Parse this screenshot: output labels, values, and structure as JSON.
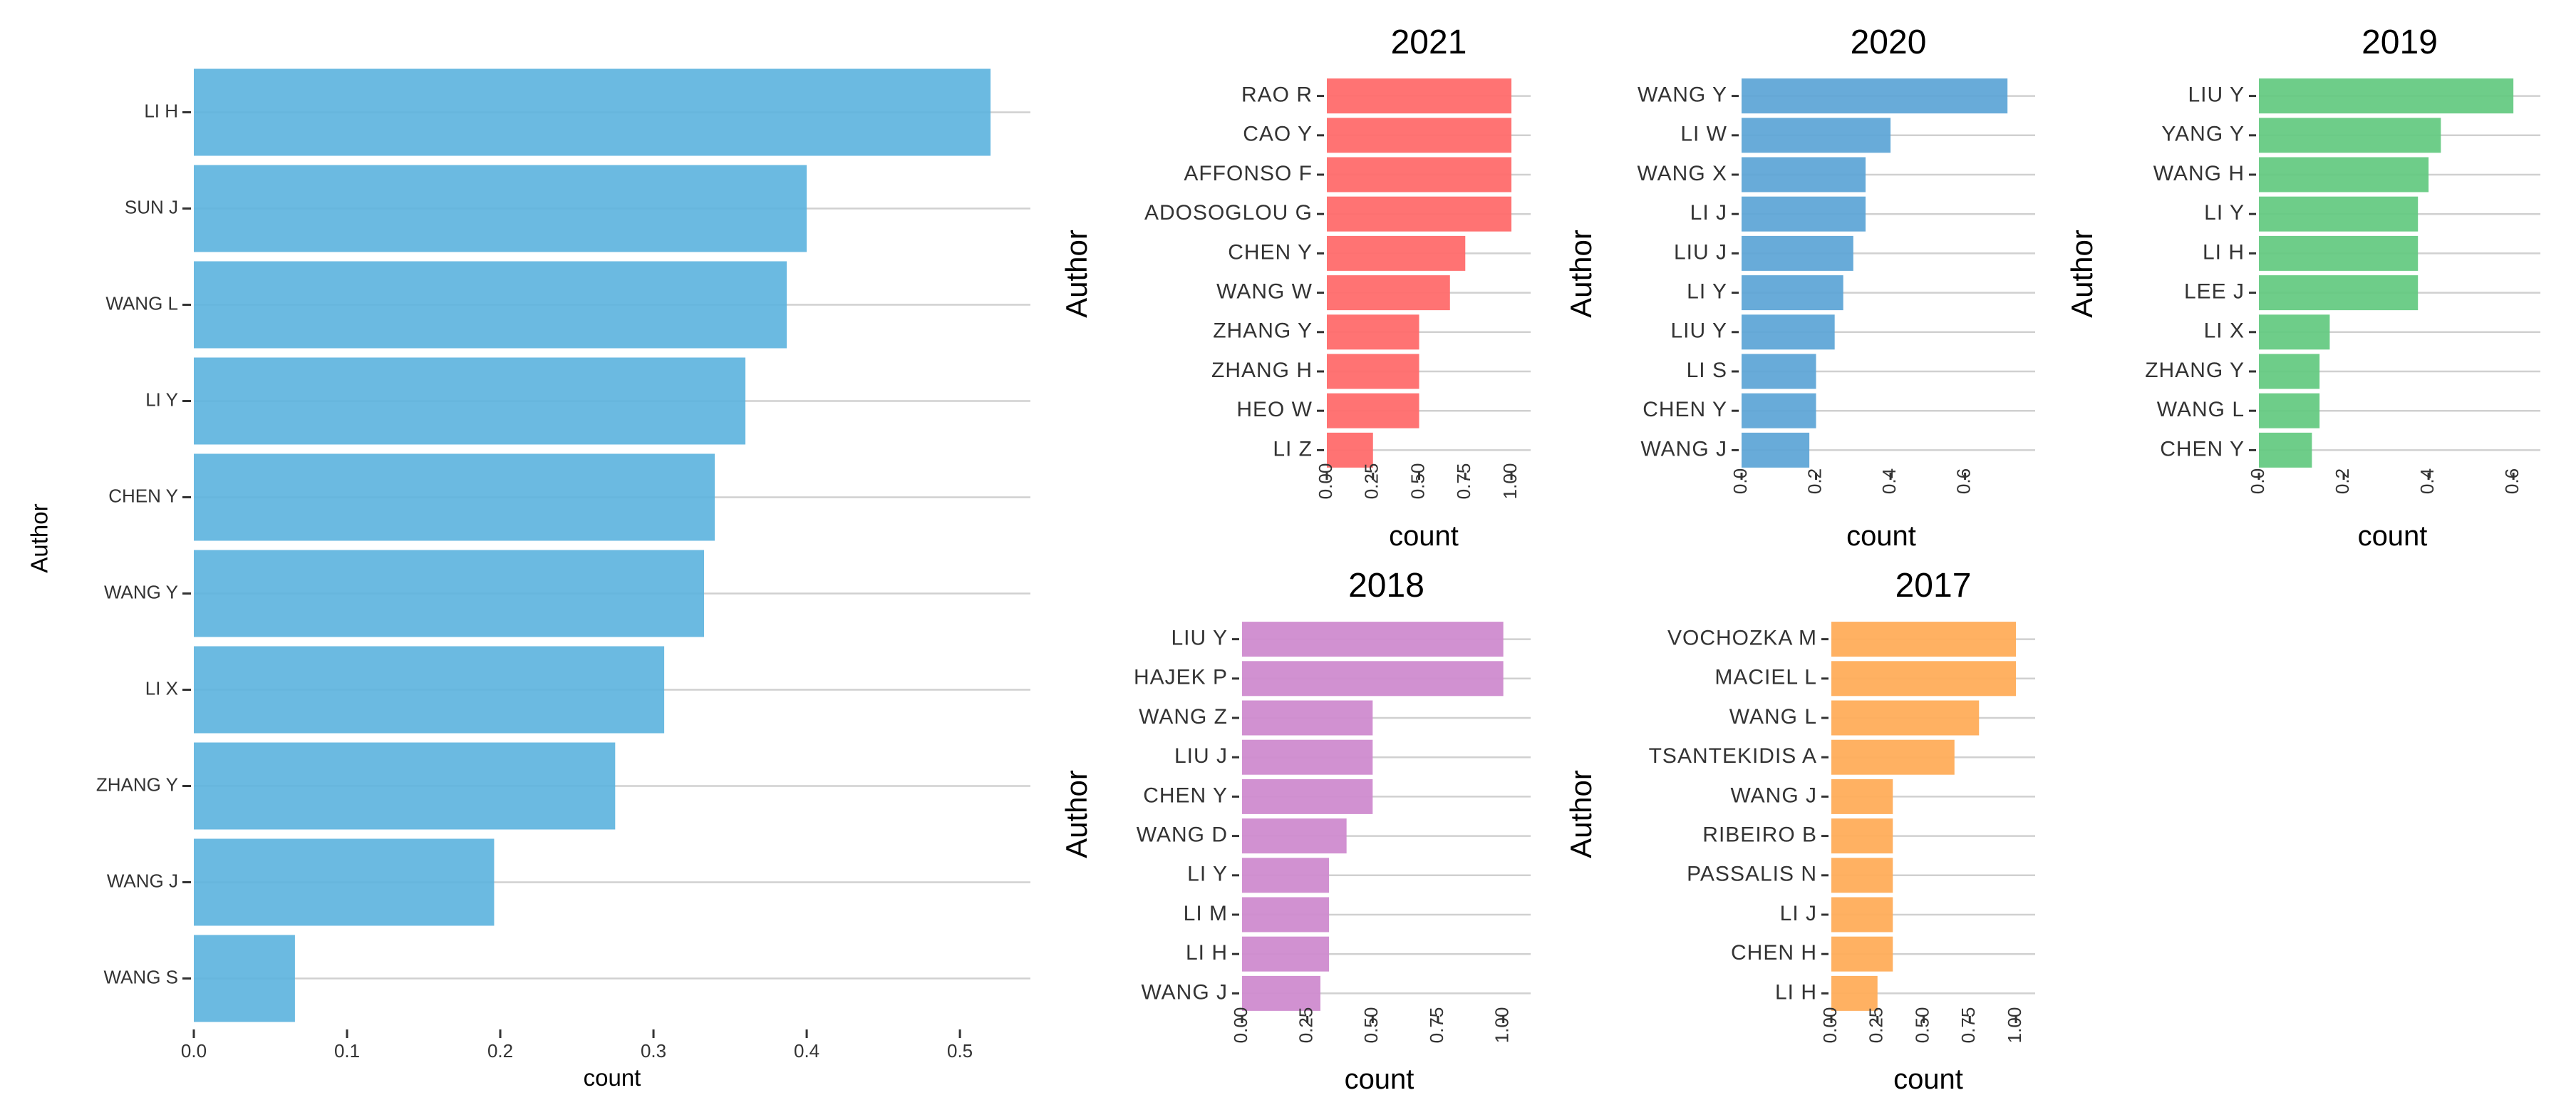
{
  "chart_data": [
    {
      "id": "main",
      "type": "bar",
      "orientation": "horizontal",
      "title": "",
      "xlabel": "count",
      "ylabel": "Author",
      "color": "#5BB3DE",
      "categories": [
        "LI H",
        "SUN J",
        "WANG L",
        "LI Y",
        "CHEN Y",
        "WANG Y",
        "LI X",
        "ZHANG Y",
        "WANG J",
        "WANG S"
      ],
      "values": [
        0.52,
        0.4,
        0.387,
        0.36,
        0.34,
        0.333,
        0.307,
        0.275,
        0.196,
        0.066
      ],
      "xlim": [
        0,
        0.546
      ],
      "xticks": [
        0.0,
        0.1,
        0.2,
        0.3,
        0.4,
        0.5
      ],
      "xtick_labels": [
        "0.0",
        "0.1",
        "0.2",
        "0.3",
        "0.4",
        "0.5"
      ]
    },
    {
      "id": "y2021",
      "type": "bar",
      "orientation": "horizontal",
      "title": "2021",
      "xlabel": "count",
      "ylabel": "Author",
      "color": "#FF6B6B",
      "categories": [
        "RAO R",
        "CAO Y",
        "AFFONSO F",
        "ADOSOGLOU G",
        "CHEN Y",
        "WANG W",
        "ZHANG Y",
        "ZHANG H",
        "HEO W",
        "LI Z"
      ],
      "values": [
        1.0,
        1.0,
        1.0,
        1.0,
        0.75,
        0.667,
        0.5,
        0.5,
        0.5,
        0.25
      ],
      "xlim": [
        0,
        1.05
      ],
      "xticks": [
        0,
        0.25,
        0.5,
        0.75,
        1.0
      ],
      "xtick_labels": [
        "0.00",
        "0.25",
        "0.50",
        "0.75",
        "1.00"
      ]
    },
    {
      "id": "y2020",
      "type": "bar",
      "orientation": "horizontal",
      "title": "2020",
      "xlabel": "count",
      "ylabel": "Author",
      "color": "#5BA4D6",
      "categories": [
        "WANG Y",
        "LI W",
        "WANG X",
        "LI J",
        "LIU J",
        "LI Y",
        "LIU Y",
        "LI S",
        "CHEN Y",
        "WANG J"
      ],
      "values": [
        0.714,
        0.4,
        0.333,
        0.333,
        0.3,
        0.273,
        0.25,
        0.2,
        0.2,
        0.182
      ],
      "xlim": [
        0,
        0.75
      ],
      "xticks": [
        0.0,
        0.2,
        0.4,
        0.6
      ],
      "xtick_labels": [
        "0.0",
        "0.2",
        "0.4",
        "0.6"
      ]
    },
    {
      "id": "y2019",
      "type": "bar",
      "orientation": "horizontal",
      "title": "2019",
      "xlabel": "count",
      "ylabel": "Author",
      "color": "#62C97F",
      "categories": [
        "LIU Y",
        "YANG Y",
        "WANG H",
        "LI Y",
        "LI H",
        "LEE J",
        "LI X",
        "ZHANG Y",
        "WANG L",
        "CHEN Y"
      ],
      "values": [
        0.6,
        0.429,
        0.4,
        0.375,
        0.375,
        0.375,
        0.167,
        0.143,
        0.143,
        0.125
      ],
      "xlim": [
        0,
        0.63
      ],
      "xticks": [
        0.0,
        0.2,
        0.4,
        0.6
      ],
      "xtick_labels": [
        "0.0",
        "0.2",
        "0.4",
        "0.6"
      ]
    },
    {
      "id": "y2018",
      "type": "bar",
      "orientation": "horizontal",
      "title": "2018",
      "xlabel": "count",
      "ylabel": "Author",
      "color": "#CF8BCF",
      "categories": [
        "LIU Y",
        "HAJEK P",
        "WANG Z",
        "LIU J",
        "CHEN Y",
        "WANG D",
        "LI Y",
        "LI M",
        "LI H",
        "WANG J"
      ],
      "values": [
        1.0,
        1.0,
        0.5,
        0.5,
        0.5,
        0.4,
        0.333,
        0.333,
        0.333,
        0.3
      ],
      "xlim": [
        0,
        1.05
      ],
      "xticks": [
        0,
        0.25,
        0.5,
        0.75,
        1.0
      ],
      "xtick_labels": [
        "0.00",
        "0.25",
        "0.50",
        "0.75",
        "1.00"
      ]
    },
    {
      "id": "y2017",
      "type": "bar",
      "orientation": "horizontal",
      "title": "2017",
      "xlabel": "count",
      "ylabel": "Author",
      "color": "#FFAD5A",
      "categories": [
        "VOCHOZKA M",
        "MACIEL L",
        "WANG L",
        "TSANTEKIDIS A",
        "WANG J",
        "RIBEIRO B",
        "PASSALIS N",
        "LI J",
        "CHEN H",
        "LI H"
      ],
      "values": [
        1.0,
        1.0,
        0.8,
        0.667,
        0.333,
        0.333,
        0.333,
        0.333,
        0.333,
        0.25
      ],
      "xlim": [
        0,
        1.05
      ],
      "xticks": [
        0,
        0.25,
        0.5,
        0.75,
        1.0
      ],
      "xtick_labels": [
        "0.00",
        "0.25",
        "0.50",
        "0.75",
        "1.00"
      ]
    }
  ]
}
